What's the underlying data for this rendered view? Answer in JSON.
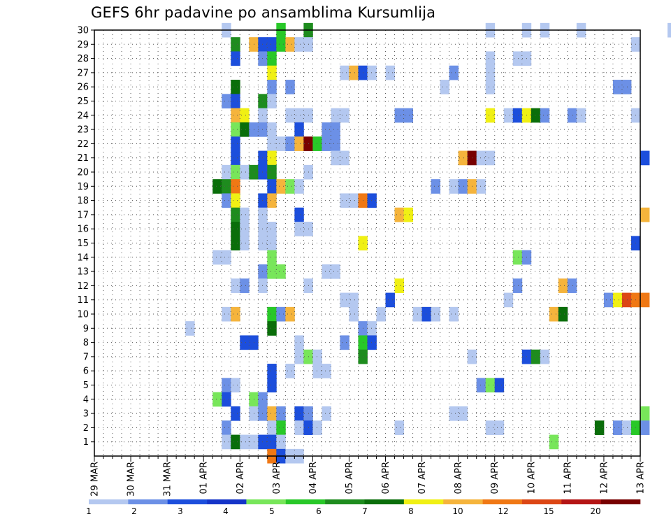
{
  "chart_data": {
    "type": "heatmap",
    "title": "GEFS 6hr padavine po ansamblima Kursumlija",
    "xlabel": "",
    "ylabel": "",
    "x_tick_labels": [
      "29 MAR",
      "30 MAR",
      "31 MAR",
      "01 APR",
      "02 APR",
      "03 APR",
      "04 APR",
      "05 APR",
      "06 APR",
      "07 APR",
      "08 APR",
      "09 APR",
      "10 APR",
      "11 APR",
      "12 APR",
      "13 APR"
    ],
    "y_tick_labels": [
      "1",
      "2",
      "3",
      "4",
      "5",
      "6",
      "7",
      "8",
      "9",
      "10",
      "11",
      "12",
      "13",
      "14",
      "15",
      "16",
      "17",
      "18",
      "19",
      "20",
      "21",
      "22",
      "23",
      "24",
      "25",
      "26",
      "27",
      "28",
      "29",
      "30"
    ],
    "x_time_range": [
      "29 MAR 00Z",
      "13 APR 00Z"
    ],
    "time_step_hours": 6,
    "members": [
      1,
      30
    ],
    "grid": true,
    "colorbar": {
      "position": "bottom",
      "labels": [
        "1",
        "2",
        "3",
        "4",
        "5",
        "6",
        "7",
        "8",
        "10",
        "12",
        "15",
        "20"
      ],
      "colors": [
        "#b4c8f0",
        "#6c90e6",
        "#1c4edc",
        "#1434c8",
        "#78e65a",
        "#28c828",
        "#1e8c1e",
        "#0a6e0a",
        "#f0f014",
        "#f5b43c",
        "#f07814",
        "#dc4614",
        "#b41414",
        "#780000"
      ]
    },
    "cells": [
      [
        30,
        14,
        0
      ],
      [
        30,
        20,
        5
      ],
      [
        30,
        23,
        6
      ],
      [
        30,
        43,
        0
      ],
      [
        30,
        47,
        0
      ],
      [
        30,
        49,
        0
      ],
      [
        30,
        53,
        0
      ],
      [
        30,
        63,
        0
      ],
      [
        30,
        65,
        2
      ],
      [
        29,
        15,
        6
      ],
      [
        29,
        17,
        9
      ],
      [
        29,
        18,
        2
      ],
      [
        29,
        19,
        2
      ],
      [
        29,
        20,
        5
      ],
      [
        29,
        21,
        9
      ],
      [
        29,
        22,
        0
      ],
      [
        29,
        23,
        0
      ],
      [
        29,
        59,
        0
      ],
      [
        28,
        15,
        2
      ],
      [
        28,
        18,
        1
      ],
      [
        28,
        19,
        5
      ],
      [
        28,
        43,
        0
      ],
      [
        28,
        46,
        0
      ],
      [
        28,
        47,
        0
      ],
      [
        27,
        19,
        8
      ],
      [
        27,
        27,
        0
      ],
      [
        27,
        28,
        9
      ],
      [
        27,
        29,
        2
      ],
      [
        27,
        30,
        0
      ],
      [
        27,
        32,
        0
      ],
      [
        27,
        39,
        1
      ],
      [
        27,
        43,
        0
      ],
      [
        26,
        15,
        7
      ],
      [
        26,
        19,
        1
      ],
      [
        26,
        21,
        1
      ],
      [
        26,
        38,
        0
      ],
      [
        26,
        43,
        0
      ],
      [
        26,
        57,
        1
      ],
      [
        26,
        58,
        1
      ],
      [
        25,
        14,
        1
      ],
      [
        25,
        15,
        2
      ],
      [
        25,
        18,
        6
      ],
      [
        25,
        19,
        0
      ],
      [
        24,
        15,
        9
      ],
      [
        24,
        16,
        8
      ],
      [
        24,
        18,
        0
      ],
      [
        24,
        21,
        0
      ],
      [
        24,
        22,
        0
      ],
      [
        24,
        23,
        0
      ],
      [
        24,
        26,
        0
      ],
      [
        24,
        27,
        0
      ],
      [
        24,
        33,
        1
      ],
      [
        24,
        34,
        1
      ],
      [
        24,
        43,
        8
      ],
      [
        24,
        45,
        0
      ],
      [
        24,
        46,
        2
      ],
      [
        24,
        47,
        8
      ],
      [
        24,
        48,
        7
      ],
      [
        24,
        49,
        1
      ],
      [
        24,
        52,
        1
      ],
      [
        24,
        53,
        0
      ],
      [
        24,
        59,
        0
      ],
      [
        23,
        15,
        4
      ],
      [
        23,
        16,
        7
      ],
      [
        23,
        17,
        1
      ],
      [
        23,
        18,
        1
      ],
      [
        23,
        19,
        0
      ],
      [
        23,
        22,
        2
      ],
      [
        23,
        25,
        1
      ],
      [
        23,
        26,
        1
      ],
      [
        22,
        15,
        2
      ],
      [
        22,
        19,
        0
      ],
      [
        22,
        20,
        0
      ],
      [
        22,
        21,
        1
      ],
      [
        22,
        22,
        9
      ],
      [
        22,
        23,
        13
      ],
      [
        22,
        24,
        5
      ],
      [
        22,
        25,
        1
      ],
      [
        22,
        26,
        1
      ],
      [
        21,
        15,
        2
      ],
      [
        21,
        18,
        2
      ],
      [
        21,
        19,
        8
      ],
      [
        21,
        26,
        0
      ],
      [
        21,
        27,
        0
      ],
      [
        21,
        40,
        9
      ],
      [
        21,
        41,
        13
      ],
      [
        21,
        42,
        0
      ],
      [
        21,
        43,
        0
      ],
      [
        21,
        60,
        2
      ],
      [
        20,
        14,
        0
      ],
      [
        20,
        15,
        4
      ],
      [
        20,
        16,
        0
      ],
      [
        20,
        17,
        6
      ],
      [
        20,
        18,
        2
      ],
      [
        20,
        19,
        6
      ],
      [
        20,
        23,
        0
      ],
      [
        19,
        13,
        7
      ],
      [
        19,
        14,
        6
      ],
      [
        19,
        15,
        10
      ],
      [
        19,
        19,
        2
      ],
      [
        19,
        20,
        9
      ],
      [
        19,
        21,
        4
      ],
      [
        19,
        22,
        0
      ],
      [
        19,
        37,
        1
      ],
      [
        19,
        39,
        0
      ],
      [
        19,
        40,
        1
      ],
      [
        19,
        41,
        9
      ],
      [
        19,
        42,
        0
      ],
      [
        18,
        14,
        1
      ],
      [
        18,
        15,
        8
      ],
      [
        18,
        18,
        2
      ],
      [
        18,
        19,
        9
      ],
      [
        18,
        27,
        0
      ],
      [
        18,
        28,
        0
      ],
      [
        18,
        29,
        10
      ],
      [
        18,
        30,
        2
      ],
      [
        17,
        15,
        6
      ],
      [
        17,
        16,
        0
      ],
      [
        17,
        18,
        0
      ],
      [
        17,
        22,
        2
      ],
      [
        17,
        33,
        9
      ],
      [
        17,
        34,
        8
      ],
      [
        17,
        60,
        9
      ],
      [
        16,
        15,
        7
      ],
      [
        16,
        16,
        0
      ],
      [
        16,
        18,
        0
      ],
      [
        16,
        19,
        0
      ],
      [
        16,
        22,
        0
      ],
      [
        16,
        23,
        0
      ],
      [
        15,
        15,
        7
      ],
      [
        15,
        16,
        0
      ],
      [
        15,
        18,
        0
      ],
      [
        15,
        19,
        0
      ],
      [
        15,
        29,
        8
      ],
      [
        15,
        59,
        2
      ],
      [
        14,
        13,
        0
      ],
      [
        14,
        14,
        0
      ],
      [
        14,
        19,
        4
      ],
      [
        14,
        46,
        4
      ],
      [
        14,
        47,
        1
      ],
      [
        13,
        18,
        1
      ],
      [
        13,
        19,
        4
      ],
      [
        13,
        20,
        4
      ],
      [
        13,
        25,
        0
      ],
      [
        13,
        26,
        0
      ],
      [
        12,
        15,
        0
      ],
      [
        12,
        16,
        1
      ],
      [
        12,
        18,
        0
      ],
      [
        12,
        23,
        0
      ],
      [
        12,
        33,
        8
      ],
      [
        12,
        46,
        1
      ],
      [
        12,
        51,
        9
      ],
      [
        12,
        52,
        1
      ],
      [
        11,
        27,
        0
      ],
      [
        11,
        28,
        0
      ],
      [
        11,
        32,
        2
      ],
      [
        11,
        45,
        0
      ],
      [
        11,
        56,
        1
      ],
      [
        11,
        57,
        8
      ],
      [
        11,
        58,
        11
      ],
      [
        11,
        59,
        10
      ],
      [
        11,
        60,
        10
      ],
      [
        10,
        14,
        0
      ],
      [
        10,
        15,
        9
      ],
      [
        10,
        19,
        5
      ],
      [
        10,
        20,
        1
      ],
      [
        10,
        21,
        9
      ],
      [
        10,
        28,
        0
      ],
      [
        10,
        31,
        0
      ],
      [
        10,
        35,
        0
      ],
      [
        10,
        36,
        2
      ],
      [
        10,
        37,
        0
      ],
      [
        10,
        39,
        0
      ],
      [
        10,
        50,
        9
      ],
      [
        10,
        51,
        7
      ],
      [
        9,
        10,
        0
      ],
      [
        9,
        19,
        7
      ],
      [
        9,
        29,
        1
      ],
      [
        9,
        30,
        0
      ],
      [
        8,
        16,
        2
      ],
      [
        8,
        17,
        2
      ],
      [
        8,
        22,
        0
      ],
      [
        8,
        27,
        1
      ],
      [
        8,
        29,
        5
      ],
      [
        8,
        30,
        2
      ],
      [
        7,
        22,
        0
      ],
      [
        7,
        23,
        4
      ],
      [
        7,
        24,
        0
      ],
      [
        7,
        29,
        6
      ],
      [
        7,
        41,
        0
      ],
      [
        7,
        47,
        2
      ],
      [
        7,
        48,
        6
      ],
      [
        7,
        49,
        0
      ],
      [
        6,
        19,
        2
      ],
      [
        6,
        21,
        0
      ],
      [
        6,
        24,
        0
      ],
      [
        6,
        25,
        0
      ],
      [
        5,
        14,
        1
      ],
      [
        5,
        15,
        0
      ],
      [
        5,
        19,
        2
      ],
      [
        5,
        42,
        1
      ],
      [
        5,
        43,
        4
      ],
      [
        5,
        44,
        2
      ],
      [
        4,
        13,
        4
      ],
      [
        4,
        14,
        2
      ],
      [
        4,
        17,
        4
      ],
      [
        4,
        18,
        1
      ],
      [
        3,
        15,
        2
      ],
      [
        3,
        17,
        0
      ],
      [
        3,
        18,
        1
      ],
      [
        3,
        19,
        9
      ],
      [
        3,
        20,
        1
      ],
      [
        3,
        22,
        2
      ],
      [
        3,
        23,
        1
      ],
      [
        3,
        25,
        0
      ],
      [
        3,
        39,
        0
      ],
      [
        3,
        40,
        0
      ],
      [
        3,
        60,
        4
      ],
      [
        2,
        14,
        1
      ],
      [
        2,
        19,
        0
      ],
      [
        2,
        20,
        5
      ],
      [
        2,
        22,
        0
      ],
      [
        2,
        23,
        2
      ],
      [
        2,
        24,
        0
      ],
      [
        2,
        33,
        0
      ],
      [
        2,
        43,
        0
      ],
      [
        2,
        44,
        0
      ],
      [
        2,
        55,
        7
      ],
      [
        2,
        57,
        1
      ],
      [
        2,
        58,
        0
      ],
      [
        2,
        59,
        5
      ],
      [
        2,
        60,
        1
      ],
      [
        1,
        14,
        0
      ],
      [
        1,
        15,
        7
      ],
      [
        1,
        16,
        0
      ],
      [
        1,
        17,
        0
      ],
      [
        1,
        18,
        2
      ],
      [
        1,
        19,
        2
      ],
      [
        1,
        20,
        0
      ],
      [
        1,
        50,
        4
      ],
      [
        0,
        19,
        10
      ],
      [
        0,
        20,
        2
      ],
      [
        0,
        21,
        0
      ],
      [
        0,
        22,
        0
      ]
    ]
  }
}
